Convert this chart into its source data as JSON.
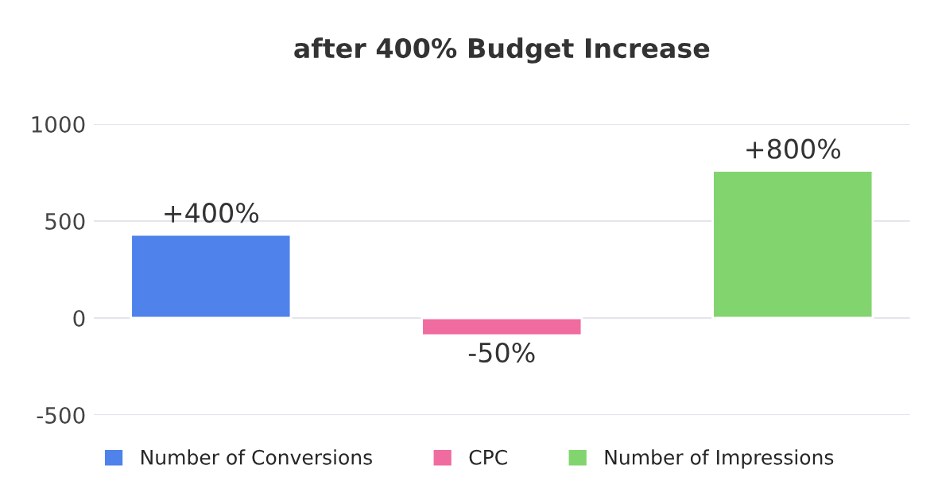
{
  "chart_data": {
    "type": "bar",
    "title": "after 400% Budget Increase",
    "categories": [
      null,
      null,
      null
    ],
    "series": [
      {
        "name": "Number of Conversions",
        "color": "#4f82ea",
        "values": [
          430,
          null,
          null
        ]
      },
      {
        "name": "CPC",
        "color": "#f06ba0",
        "values": [
          null,
          -90,
          null
        ]
      },
      {
        "name": "Number of Impressions",
        "color": "#82d46e",
        "values": [
          null,
          null,
          760
        ]
      }
    ],
    "value_labels": [
      "+400%",
      "-50%",
      "+800%"
    ],
    "ylim": [
      -500,
      1000
    ],
    "yticks": [
      -500,
      0,
      500,
      1000
    ],
    "grid": "y",
    "legend": "bottom"
  }
}
